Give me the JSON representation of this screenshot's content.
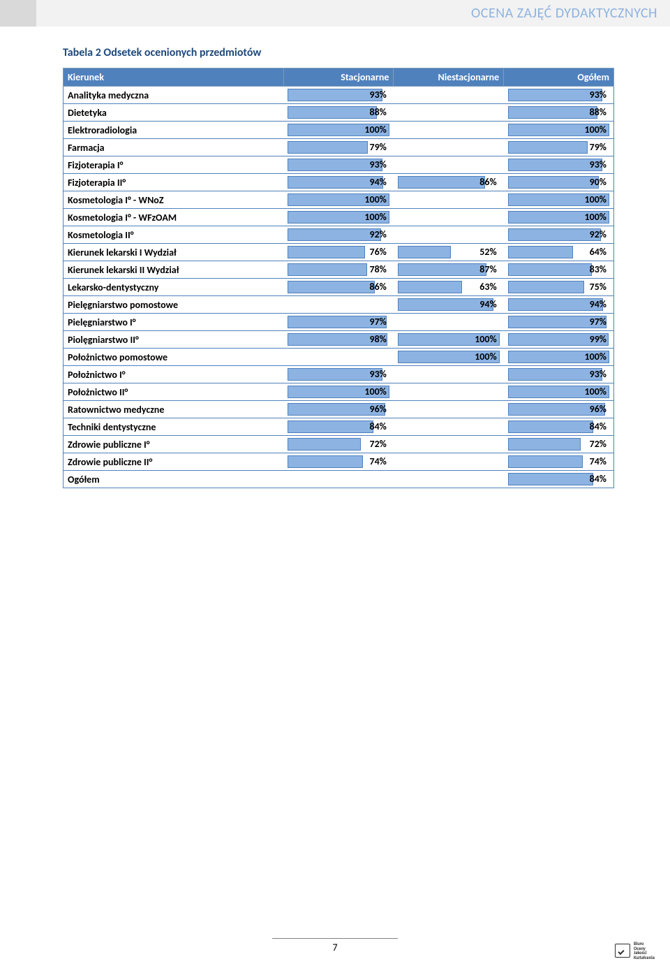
{
  "header": {
    "title": "OCENA ZAJĘĆ DYDAKTYCZNYCH"
  },
  "caption": "Tabela 2 Odsetek ocenionych przedmiotów",
  "table": {
    "columns": [
      "Kierunek",
      "Stacjonarne",
      "Niestacjonarne",
      "Ogółem"
    ],
    "col_widths_pct": [
      40,
      20,
      20,
      20
    ],
    "bar_color": "#8db3e2",
    "bar_border": "#4f81bd",
    "header_bg": "#4f81bd",
    "header_fg": "#ffffff",
    "rows": [
      {
        "label": "Analityka medyczna",
        "stac": 93,
        "niestac": null,
        "ogolem": 93
      },
      {
        "label": "Dietetyka",
        "stac": 88,
        "niestac": null,
        "ogolem": 88
      },
      {
        "label": "Elektroradiologia",
        "stac": 100,
        "niestac": null,
        "ogolem": 100
      },
      {
        "label": "Farmacja",
        "stac": 79,
        "niestac": null,
        "ogolem": 79
      },
      {
        "label": "Fizjoterapia I°",
        "stac": 93,
        "niestac": null,
        "ogolem": 93
      },
      {
        "label": "Fizjoterapia II°",
        "stac": 94,
        "niestac": 86,
        "ogolem": 90
      },
      {
        "label": "Kosmetologia I° - WNoZ",
        "stac": 100,
        "niestac": null,
        "ogolem": 100
      },
      {
        "label": "Kosmetologia I° - WFzOAM",
        "stac": 100,
        "niestac": null,
        "ogolem": 100
      },
      {
        "label": "Kosmetologia II°",
        "stac": 92,
        "niestac": null,
        "ogolem": 92
      },
      {
        "label": "Kierunek lekarski I Wydział",
        "stac": 76,
        "niestac": 52,
        "ogolem": 64
      },
      {
        "label": "Kierunek lekarski II Wydział",
        "stac": 78,
        "niestac": 87,
        "ogolem": 83
      },
      {
        "label": "Lekarsko-dentystyczny",
        "stac": 86,
        "niestac": 63,
        "ogolem": 75
      },
      {
        "label": "Pielęgniarstwo pomostowe",
        "stac": null,
        "niestac": 94,
        "ogolem": 94
      },
      {
        "label": "Pielęgniarstwo I°",
        "stac": 97,
        "niestac": null,
        "ogolem": 97
      },
      {
        "label": "Piolęgniarstwo II°",
        "stac": 98,
        "niestac": 100,
        "ogolem": 99
      },
      {
        "label": "Położnictwo pomostowe",
        "stac": null,
        "niestac": 100,
        "ogolem": 100
      },
      {
        "label": "Położnictwo I°",
        "stac": 93,
        "niestac": null,
        "ogolem": 93
      },
      {
        "label": "Położnictwo II°",
        "stac": 100,
        "niestac": null,
        "ogolem": 100
      },
      {
        "label": "Ratownictwo medyczne",
        "stac": 96,
        "niestac": null,
        "ogolem": 96
      },
      {
        "label": "Techniki dentystyczne",
        "stac": 84,
        "niestac": null,
        "ogolem": 84
      },
      {
        "label": "Zdrowie publiczne I°",
        "stac": 72,
        "niestac": null,
        "ogolem": 72
      },
      {
        "label": "Zdrowie publiczne II°",
        "stac": 74,
        "niestac": null,
        "ogolem": 74
      },
      {
        "label": "Ogółem",
        "stac": null,
        "niestac": null,
        "ogolem": 84
      }
    ]
  },
  "footer": {
    "page_number": "7"
  },
  "logo": {
    "line1": "Biuro",
    "line2": "Oceny",
    "line3": "Jakości",
    "line4": "Kształcenia"
  }
}
